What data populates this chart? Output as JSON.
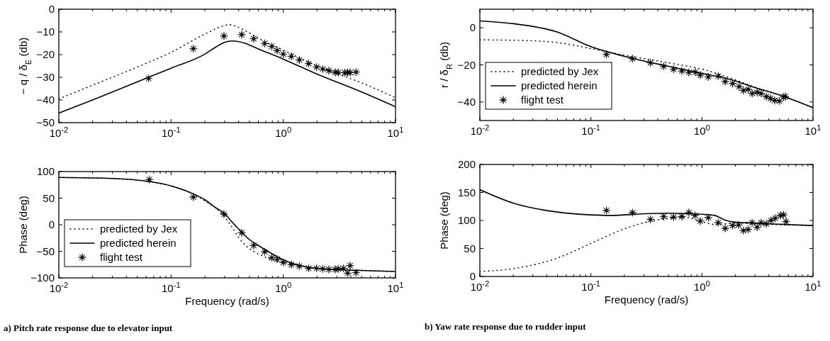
{
  "chart_data": [
    {
      "type": "line",
      "ylabel": "− q / δ$_{E}$ (db)",
      "log": "x",
      "xlim": [
        0.01,
        10
      ],
      "ylim": [
        -50,
        0
      ],
      "yticks": [
        -50,
        -40,
        -30,
        -20,
        -10,
        0
      ],
      "xticks": [
        {
          "value": 0.01,
          "label": "10$^{-2}$"
        },
        {
          "value": 0.02,
          "label": null
        },
        {
          "value": 0.03,
          "label": null
        },
        {
          "value": 0.04,
          "label": null
        },
        {
          "value": 0.05,
          "label": null
        },
        {
          "value": 0.06,
          "label": null
        },
        {
          "value": 0.07,
          "label": null
        },
        {
          "value": 0.08,
          "label": null
        },
        {
          "value": 0.09,
          "label": null
        },
        {
          "value": 0.1,
          "label": "10$^{-1}$"
        },
        {
          "value": 0.2,
          "label": null
        },
        {
          "value": 0.3,
          "label": null
        },
        {
          "value": 0.4,
          "label": null
        },
        {
          "value": 0.5,
          "label": null
        },
        {
          "value": 0.6,
          "label": null
        },
        {
          "value": 0.7,
          "label": null
        },
        {
          "value": 0.8,
          "label": null
        },
        {
          "value": 0.9,
          "label": null
        },
        {
          "value": 1,
          "label": "10$^{0}$"
        },
        {
          "value": 2,
          "label": null
        },
        {
          "value": 3,
          "label": null
        },
        {
          "value": 4,
          "label": null
        },
        {
          "value": 5,
          "label": null
        },
        {
          "value": 6,
          "label": null
        },
        {
          "value": 7,
          "label": null
        },
        {
          "value": 8,
          "label": null
        },
        {
          "value": 9,
          "label": null
        },
        {
          "value": 10,
          "label": "10$^{1}$"
        }
      ],
      "series": [
        {
          "type": "line",
          "line_style": "dotted",
          "color": "#000000",
          "x": [
            0.01,
            0.02,
            0.05,
            0.1,
            0.2,
            0.3,
            0.33,
            0.4,
            0.5,
            0.7,
            1,
            2,
            5,
            10
          ],
          "values": [
            -39.5,
            -33.5,
            -25.5,
            -19,
            -11,
            -7.2,
            -6.8,
            -8,
            -10.5,
            -14.5,
            -18,
            -25,
            -32.5,
            -39
          ]
        },
        {
          "type": "line",
          "line_style": "solid",
          "color": "#000000",
          "x": [
            0.01,
            0.02,
            0.05,
            0.1,
            0.2,
            0.25,
            0.3,
            0.35,
            0.45,
            0.6,
            1,
            2,
            5,
            10
          ],
          "values": [
            -45.8,
            -40,
            -32,
            -26,
            -19.8,
            -16.7,
            -14.6,
            -14,
            -14.9,
            -17.5,
            -22,
            -28.6,
            -36.5,
            -43
          ]
        },
        {
          "type": "scatter",
          "marker": "star",
          "color": "#000000",
          "x": [
            0.063,
            0.158,
            0.296,
            0.426,
            0.545,
            0.683,
            0.789,
            0.881,
            1.0,
            1.18,
            1.39,
            1.68,
            1.98,
            2.25,
            2.55,
            2.9,
            3.09,
            3.52,
            3.75,
            3.94,
            4.45
          ],
          "values": [
            -30.5,
            -17.4,
            -11.8,
            -11.2,
            -13,
            -15.1,
            -16.4,
            -18.2,
            -19.8,
            -20.8,
            -22.4,
            -24,
            -25.5,
            -26.4,
            -27.1,
            -27.8,
            -27.9,
            -28,
            -27.9,
            -27.9,
            -27.7
          ]
        }
      ]
    },
    {
      "type": "line",
      "xlabel": "Frequency (rad/s)",
      "ylabel": "Phase (deg)",
      "log": "x",
      "legend": "bottom left",
      "annotations": [
        "a) Pitch rate response due to elevator input"
      ],
      "xlim": [
        0.01,
        10
      ],
      "ylim": [
        -100,
        100
      ],
      "yticks": [
        -100,
        -50,
        0,
        50,
        100
      ],
      "xticks": [
        {
          "value": 0.01,
          "label": "10$^{-2}$"
        },
        {
          "value": 0.02,
          "label": null
        },
        {
          "value": 0.03,
          "label": null
        },
        {
          "value": 0.04,
          "label": null
        },
        {
          "value": 0.05,
          "label": null
        },
        {
          "value": 0.06,
          "label": null
        },
        {
          "value": 0.07,
          "label": null
        },
        {
          "value": 0.08,
          "label": null
        },
        {
          "value": 0.09,
          "label": null
        },
        {
          "value": 0.1,
          "label": "10$^{-1}$"
        },
        {
          "value": 0.2,
          "label": null
        },
        {
          "value": 0.3,
          "label": null
        },
        {
          "value": 0.4,
          "label": null
        },
        {
          "value": 0.5,
          "label": null
        },
        {
          "value": 0.6,
          "label": null
        },
        {
          "value": 0.7,
          "label": null
        },
        {
          "value": 0.8,
          "label": null
        },
        {
          "value": 0.9,
          "label": null
        },
        {
          "value": 1,
          "label": "10$^{0}$"
        },
        {
          "value": 2,
          "label": null
        },
        {
          "value": 3,
          "label": null
        },
        {
          "value": 4,
          "label": null
        },
        {
          "value": 5,
          "label": null
        },
        {
          "value": 6,
          "label": null
        },
        {
          "value": 7,
          "label": null
        },
        {
          "value": 8,
          "label": null
        },
        {
          "value": 9,
          "label": null
        },
        {
          "value": 10,
          "label": "10$^{1}$"
        }
      ],
      "series": [
        {
          "name": "predicted by Jex",
          "type": "line",
          "line_style": "dotted",
          "color": "#000000",
          "x": [
            0.01,
            0.03,
            0.05,
            0.07,
            0.1,
            0.15,
            0.2,
            0.3,
            0.35,
            0.4,
            0.5,
            0.6,
            0.8,
            1,
            2,
            5,
            10
          ],
          "values": [
            89,
            87,
            84,
            80,
            73,
            60,
            45,
            15,
            -5,
            -24,
            -45,
            -55,
            -66,
            -71,
            -82,
            -86,
            -88
          ]
        },
        {
          "name": "predicted herein",
          "type": "line",
          "line_style": "solid",
          "color": "#000000",
          "x": [
            0.01,
            0.03,
            0.05,
            0.07,
            0.1,
            0.15,
            0.2,
            0.25,
            0.3,
            0.35,
            0.4,
            0.5,
            0.6,
            0.8,
            1,
            2,
            5,
            10
          ],
          "values": [
            89,
            87,
            84,
            80,
            73,
            60,
            47,
            32,
            21,
            5,
            -8,
            -28,
            -39,
            -55,
            -66,
            -82,
            -86,
            -88
          ]
        },
        {
          "name": "flight test",
          "type": "scatter",
          "marker": "star",
          "color": "#000000",
          "x": [
            0.064,
            0.158,
            0.296,
            0.426,
            0.545,
            0.683,
            0.789,
            0.881,
            1.0,
            1.18,
            1.39,
            1.68,
            1.98,
            2.25,
            2.55,
            2.9,
            3.09,
            3.44,
            3.75,
            3.94,
            4.45
          ],
          "values": [
            85,
            52,
            20,
            -15,
            -39,
            -51,
            -62,
            -65,
            -71,
            -75,
            -78,
            -82,
            -82,
            -83,
            -84,
            -84,
            -83,
            -82,
            -91,
            -77,
            -90
          ]
        }
      ]
    },
    {
      "type": "line",
      "ylabel": "r / δ$_{R}$ (db)",
      "log": "x",
      "legend": "bottom left",
      "xlim": [
        0.01,
        10
      ],
      "ylim": [
        -50,
        10
      ],
      "yticks": [
        -40,
        -20,
        0
      ],
      "xticks": [
        {
          "value": 0.01,
          "label": "10$^{-2}$"
        },
        {
          "value": 0.02,
          "label": null
        },
        {
          "value": 0.03,
          "label": null
        },
        {
          "value": 0.04,
          "label": null
        },
        {
          "value": 0.05,
          "label": null
        },
        {
          "value": 0.06,
          "label": null
        },
        {
          "value": 0.07,
          "label": null
        },
        {
          "value": 0.08,
          "label": null
        },
        {
          "value": 0.09,
          "label": null
        },
        {
          "value": 0.1,
          "label": "10$^{-1}$"
        },
        {
          "value": 0.2,
          "label": null
        },
        {
          "value": 0.3,
          "label": null
        },
        {
          "value": 0.4,
          "label": null
        },
        {
          "value": 0.5,
          "label": null
        },
        {
          "value": 0.6,
          "label": null
        },
        {
          "value": 0.7,
          "label": null
        },
        {
          "value": 0.8,
          "label": null
        },
        {
          "value": 0.9,
          "label": null
        },
        {
          "value": 1,
          "label": "10$^{0}$"
        },
        {
          "value": 2,
          "label": null
        },
        {
          "value": 3,
          "label": null
        },
        {
          "value": 4,
          "label": null
        },
        {
          "value": 5,
          "label": null
        },
        {
          "value": 6,
          "label": null
        },
        {
          "value": 7,
          "label": null
        },
        {
          "value": 8,
          "label": null
        },
        {
          "value": 9,
          "label": null
        },
        {
          "value": 10,
          "label": "10$^{1}$"
        }
      ],
      "series": [
        {
          "name": "predicted by Jex",
          "type": "line",
          "line_style": "dotted",
          "color": "#000000",
          "x": [
            0.01,
            0.03,
            0.05,
            0.1,
            0.2,
            0.5,
            1,
            1.8,
            3,
            5.5,
            10
          ],
          "values": [
            -6.5,
            -7,
            -8,
            -11.2,
            -14.8,
            -18.9,
            -22.3,
            -27.1,
            -32,
            -37.1,
            -43
          ]
        },
        {
          "name": "predicted herein",
          "type": "line",
          "line_style": "solid",
          "color": "#000000",
          "x": [
            0.01,
            0.02,
            0.05,
            0.1,
            0.2,
            0.5,
            1,
            1.8,
            3,
            5.5,
            10
          ],
          "values": [
            3.7,
            2.2,
            -2.3,
            -10.2,
            -15.4,
            -20.8,
            -24.6,
            -27.8,
            -32.2,
            -37.1,
            -43.1
          ]
        },
        {
          "name": "flight test",
          "type": "scatter",
          "marker": "star",
          "color": "#000000",
          "x": [
            0.138,
            0.237,
            0.344,
            0.452,
            0.555,
            0.659,
            0.763,
            0.872,
            0.966,
            1.14,
            1.4,
            1.62,
            1.89,
            2.16,
            2.36,
            2.61,
            2.83,
            3.14,
            3.41,
            3.8,
            4.15,
            4.52,
            4.98,
            5.44,
            5.63
          ],
          "values": [
            -14.4,
            -16.7,
            -18.9,
            -20.8,
            -22.4,
            -23.3,
            -24.1,
            -23.9,
            -25.5,
            -26.5,
            -26.1,
            -29,
            -30.1,
            -31.7,
            -33.8,
            -33.2,
            -35.4,
            -34.8,
            -35.4,
            -37.1,
            -38.1,
            -39.2,
            -39.5,
            -37.3,
            -37.1
          ]
        }
      ]
    },
    {
      "type": "line",
      "xlabel": "Frequency (rad/s)",
      "ylabel": "Phase (deg)",
      "log": "x",
      "annotations": [
        "b) Yaw rate response due to rudder input"
      ],
      "xlim": [
        0.01,
        10
      ],
      "ylim": [
        0,
        200
      ],
      "yticks": [
        0,
        50,
        100,
        150,
        200
      ],
      "xticks": [
        {
          "value": 0.01,
          "label": "10$^{-2}$"
        },
        {
          "value": 0.02,
          "label": null
        },
        {
          "value": 0.03,
          "label": null
        },
        {
          "value": 0.04,
          "label": null
        },
        {
          "value": 0.05,
          "label": null
        },
        {
          "value": 0.06,
          "label": null
        },
        {
          "value": 0.07,
          "label": null
        },
        {
          "value": 0.08,
          "label": null
        },
        {
          "value": 0.09,
          "label": null
        },
        {
          "value": 0.1,
          "label": "10$^{-1}$"
        },
        {
          "value": 0.2,
          "label": null
        },
        {
          "value": 0.3,
          "label": null
        },
        {
          "value": 0.4,
          "label": null
        },
        {
          "value": 0.5,
          "label": null
        },
        {
          "value": 0.6,
          "label": null
        },
        {
          "value": 0.7,
          "label": null
        },
        {
          "value": 0.8,
          "label": null
        },
        {
          "value": 0.9,
          "label": null
        },
        {
          "value": 1,
          "label": "10$^{0}$"
        },
        {
          "value": 2,
          "label": null
        },
        {
          "value": 3,
          "label": null
        },
        {
          "value": 4,
          "label": null
        },
        {
          "value": 5,
          "label": null
        },
        {
          "value": 6,
          "label": null
        },
        {
          "value": 7,
          "label": null
        },
        {
          "value": 8,
          "label": null
        },
        {
          "value": 9,
          "label": null
        },
        {
          "value": 10,
          "label": "10$^{1}$"
        }
      ],
      "series": [
        {
          "type": "line",
          "line_style": "dotted",
          "color": "#000000",
          "x": [
            0.01,
            0.02,
            0.05,
            0.1,
            0.2,
            0.3,
            0.5,
            0.7,
            1,
            1.3,
            2,
            4,
            10
          ],
          "values": [
            9,
            14,
            33,
            59,
            85,
            96,
            104,
            106,
            98,
            93,
            95,
            93,
            91
          ]
        },
        {
          "type": "line",
          "line_style": "solid",
          "color": "#000000",
          "x": [
            0.01,
            0.02,
            0.05,
            0.1,
            0.15,
            0.3,
            0.5,
            1,
            1.3,
            1.6,
            2,
            2.5,
            4,
            10
          ],
          "values": [
            155,
            131,
            115,
            110,
            109,
            112,
            113,
            111,
            109,
            101,
            97,
            96,
            94,
            91
          ]
        },
        {
          "type": "scatter",
          "marker": "star",
          "color": "#000000",
          "x": [
            0.138,
            0.237,
            0.344,
            0.452,
            0.555,
            0.659,
            0.763,
            0.866,
            0.966,
            1.14,
            1.4,
            1.62,
            1.89,
            2.14,
            2.36,
            2.61,
            2.83,
            3.14,
            3.41,
            3.8,
            4.19,
            4.57,
            5.09,
            5.44,
            5.72
          ],
          "values": [
            118,
            114,
            102,
            107,
            106,
            107,
            114,
            109,
            99,
            105,
            96,
            86,
            91,
            92,
            82,
            84,
            96,
            88,
            96,
            94,
            100,
            104,
            109,
            110,
            98
          ]
        }
      ]
    }
  ]
}
